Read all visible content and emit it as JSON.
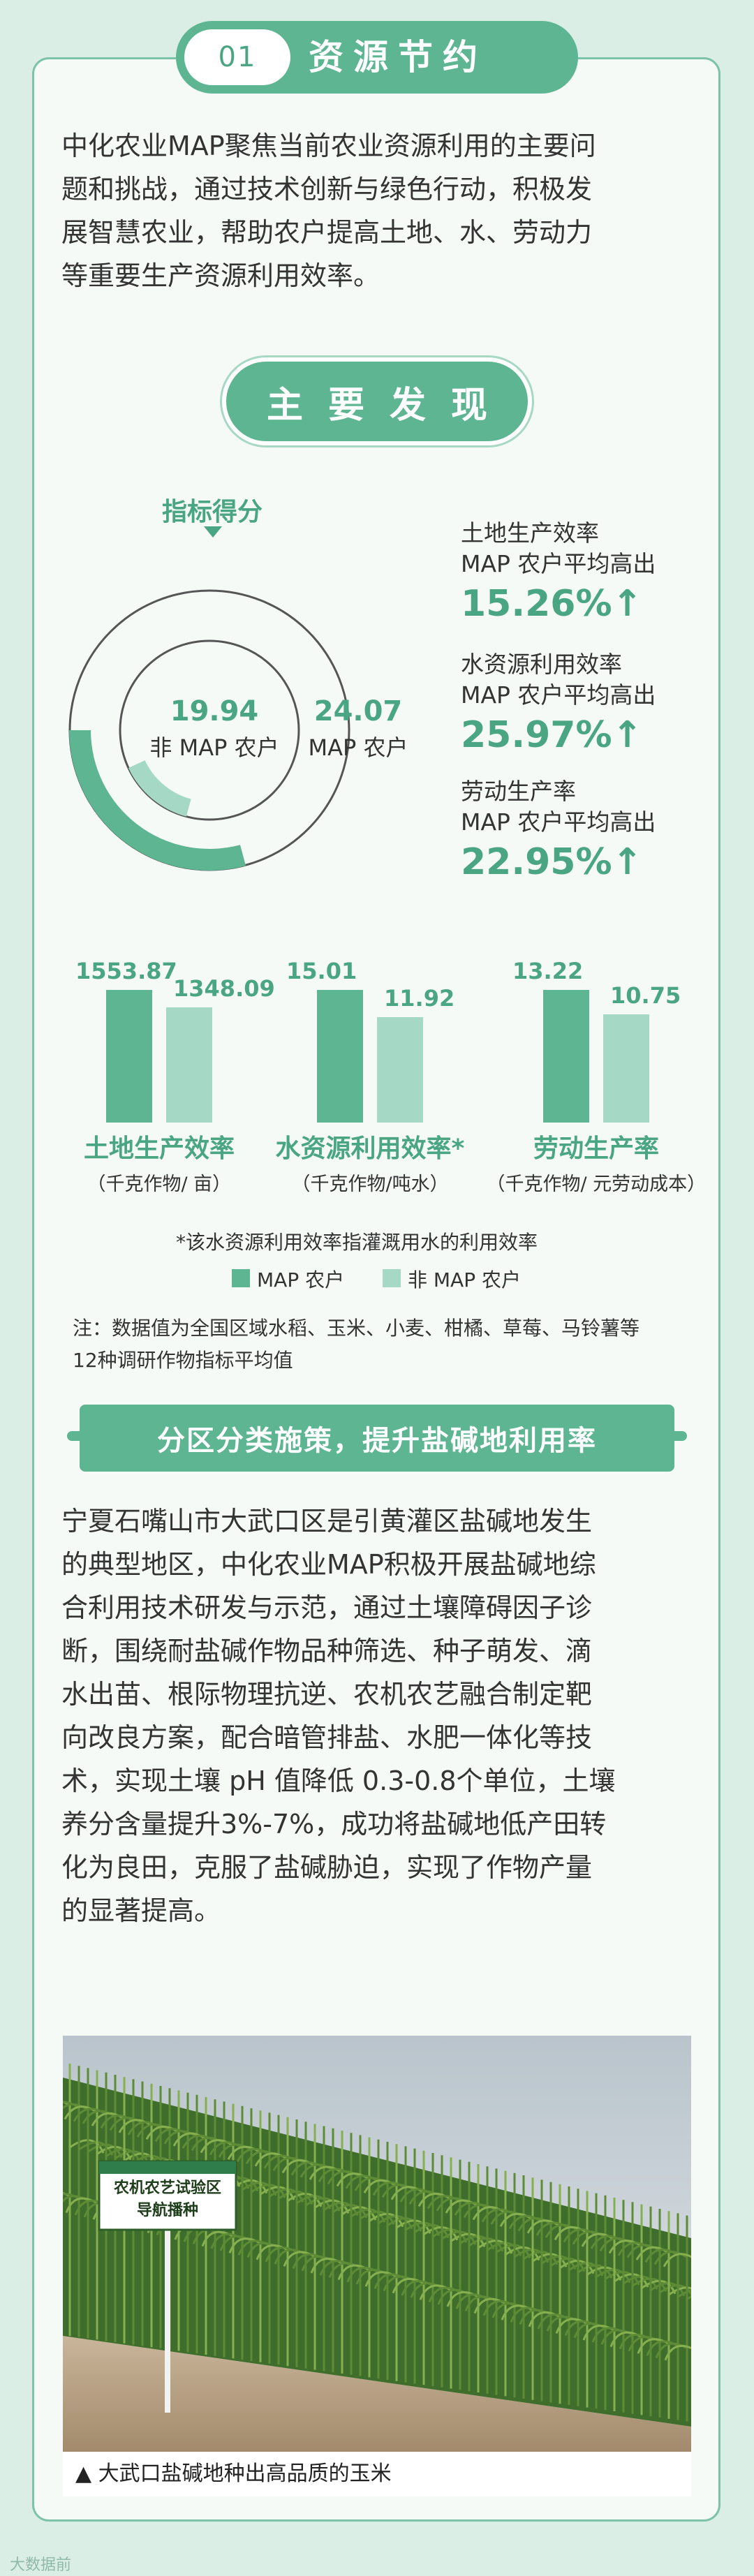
{
  "section1": {
    "number": "01",
    "title": "资源节约",
    "intro_lines": [
      "中化农业MAP聚焦当前农业资源利用的主要问",
      "题和挑战，通过技术创新与绿色行动，积极发",
      "展智慧农业，帮助农户提高土地、水、劳动力",
      "等重要生产资源利用效率。"
    ]
  },
  "findings_title": "主要发现",
  "index_label": "指标得分",
  "donut": {
    "non_map_score": "19.94",
    "non_map_label": "非 MAP 农户",
    "map_score": "24.07",
    "map_label": "MAP 农户",
    "colors": {
      "map": "#5db592",
      "non_map": "#a5d9c5",
      "track": "#555555"
    }
  },
  "metrics": [
    {
      "name": "土地生产效率",
      "desc": "MAP 农户平均高出",
      "pct": "15.26%↑"
    },
    {
      "name": "水资源利用效率",
      "desc": "MAP 农户平均高出",
      "pct": "25.97%↑"
    },
    {
      "name": "劳动生产率",
      "desc": "MAP 农户平均高出",
      "pct": "22.95%↑"
    }
  ],
  "chart_data": {
    "type": "bar",
    "categories": [
      "土地生产效率",
      "水资源利用效率*",
      "劳动生产率"
    ],
    "units": [
      "（千克作物/ 亩）",
      "（千克作物/吨水）",
      "（千克作物/ 元劳动成本）"
    ],
    "series": [
      {
        "name": "MAP 农户",
        "values": [
          1553.87,
          15.01,
          13.22
        ],
        "labels": [
          "1553.87",
          "15.01",
          "13.22"
        ]
      },
      {
        "name": "非 MAP 农户",
        "values": [
          1348.09,
          11.92,
          10.75
        ],
        "labels": [
          "1348.09",
          "11.92",
          "10.75"
        ]
      }
    ]
  },
  "footnote": "*该水资源利用效率指灌溉用水的利用效率",
  "legend": {
    "map": "MAP 农户",
    "non_map": "非 MAP 农户"
  },
  "note_lines": [
    "注：数据值为全国区域水稻、玉米、小麦、柑橘、草莓、马铃薯等",
    "12种调研作物指标平均值"
  ],
  "section2": {
    "title": "分区分类施策，提升盐碱地利用率",
    "body_lines": [
      "宁夏石嘴山市大武口区是引黄灌区盐碱地发生",
      "的典型地区，中化农业MAP积极开展盐碱地综",
      "合利用技术研发与示范，通过土壤障碍因子诊",
      "断，围绕耐盐碱作物品种筛选、种子萌发、滴",
      "水出苗、根际物理抗逆、农机农艺融合制定靶",
      "向改良方案，配合暗管排盐、水肥一体化等技",
      "术，实现土壤 pH 值降低 0.3-0.8个单位，土壤",
      "养分含量提升3%-7%，成功将盐碱地低产田转",
      "化为良田，克服了盐碱胁迫，实现了作物产量",
      "的显著提高。"
    ]
  },
  "photo": {
    "sign_line1": "农机农艺试验区",
    "sign_line2": "导航播种",
    "caption": "▲ 大武口盐碱地种出高品质的玉米"
  },
  "watermark": "大数据前"
}
